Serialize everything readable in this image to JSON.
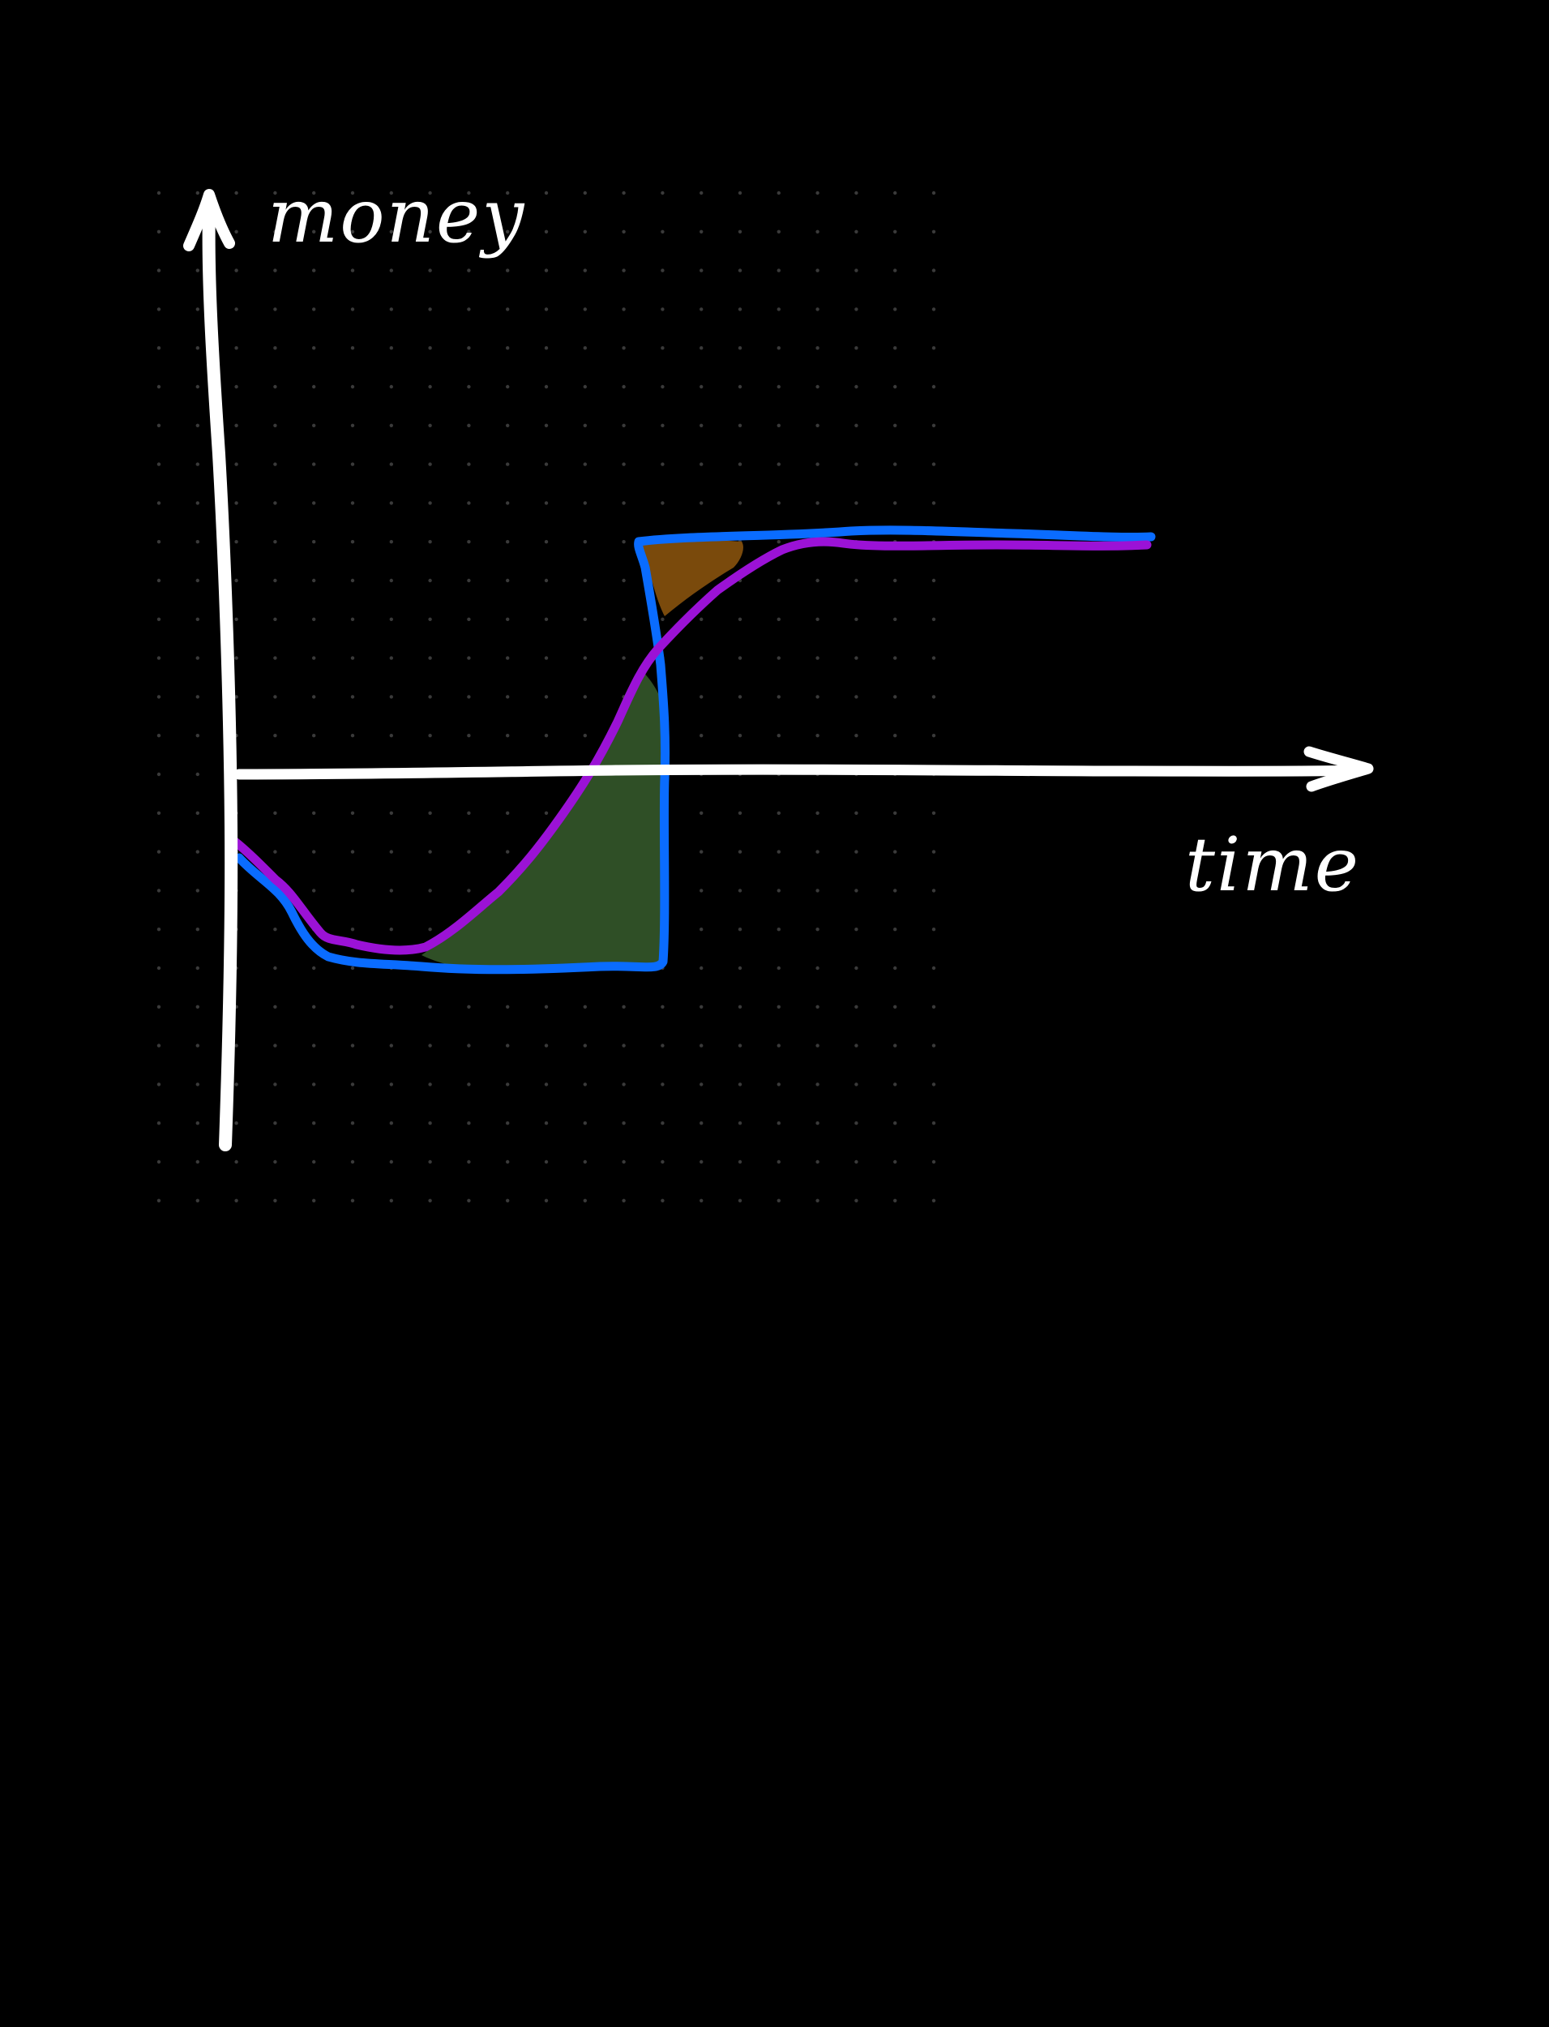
{
  "canvas": {
    "background": "#000000",
    "dot_color": "#3a3a3a"
  },
  "axes": {
    "y_label": "money",
    "x_label": "time",
    "color": "#ffffff"
  },
  "curves": {
    "blue_color": "#0a6cff",
    "purple_color": "#9b12d6"
  },
  "regions": {
    "green_fill": "#2f4f26",
    "brown_fill": "#7a4a0c"
  }
}
